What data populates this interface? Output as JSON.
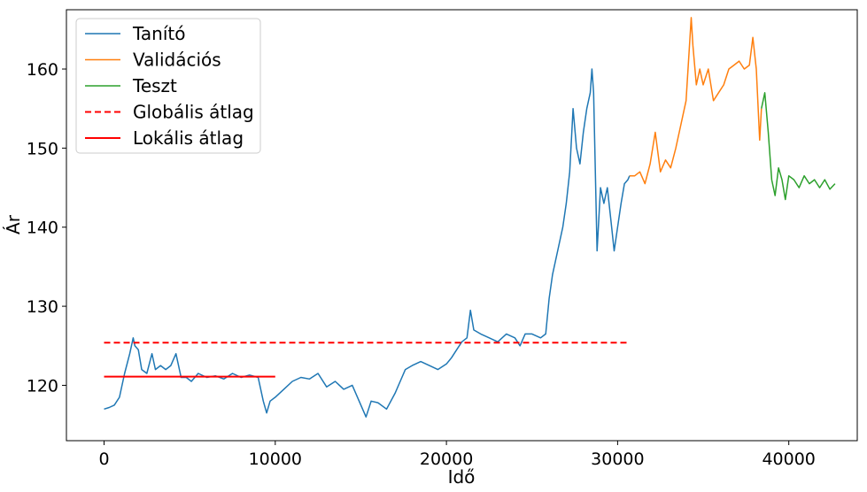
{
  "chart_data": {
    "type": "line",
    "xlabel": "Idő",
    "ylabel": "Ár",
    "xlim": [
      -2200,
      44000
    ],
    "ylim": [
      113,
      167.5
    ],
    "xticks": [
      0,
      10000,
      20000,
      30000,
      40000
    ],
    "xtick_labels": [
      "0",
      "10000",
      "20000",
      "30000",
      "40000"
    ],
    "yticks": [
      120,
      130,
      140,
      150,
      160
    ],
    "ytick_labels": [
      "120",
      "130",
      "140",
      "150",
      "160"
    ],
    "grid": false,
    "legend_position": "top-left",
    "series": [
      {
        "name": "Tanító",
        "color": "#1f77b4",
        "style": "solid",
        "x": [
          0,
          300,
          600,
          900,
          1200,
          1500,
          1700,
          1800,
          2000,
          2200,
          2500,
          2800,
          3000,
          3300,
          3600,
          3900,
          4200,
          4500,
          4800,
          5100,
          5500,
          6000,
          6500,
          7000,
          7500,
          8000,
          8500,
          9000,
          9300,
          9500,
          9700,
          10000,
          10500,
          11000,
          11500,
          12000,
          12500,
          13000,
          13500,
          14000,
          14500,
          15000,
          15300,
          15600,
          16000,
          16500,
          17000,
          17300,
          17600,
          18000,
          18500,
          19000,
          19500,
          20000,
          20300,
          20600,
          20900,
          21200,
          21400,
          21600,
          22000,
          22500,
          23000,
          23500,
          24000,
          24300,
          24600,
          25000,
          25500,
          25800,
          26000,
          26200,
          26500,
          26800,
          27000,
          27200,
          27400,
          27600,
          27800,
          28000,
          28200,
          28400,
          28500,
          28600,
          28800,
          29000,
          29200,
          29400,
          29600,
          29800,
          30000,
          30200,
          30400,
          30600,
          30700
        ],
        "y": [
          117.0,
          117.2,
          117.5,
          118.5,
          121.5,
          124.0,
          126.0,
          125.0,
          124.5,
          122.0,
          121.5,
          124.0,
          122.0,
          122.5,
          122.0,
          122.5,
          124.0,
          121.0,
          121.0,
          120.5,
          121.5,
          121.0,
          121.2,
          120.8,
          121.5,
          121.0,
          121.3,
          121.0,
          118.0,
          116.5,
          118.0,
          118.5,
          119.5,
          120.5,
          121.0,
          120.8,
          121.5,
          119.8,
          120.5,
          119.5,
          120.0,
          117.5,
          116.0,
          118.0,
          117.8,
          117.0,
          119.0,
          120.5,
          122.0,
          122.5,
          123.0,
          122.5,
          122.0,
          122.7,
          123.5,
          124.5,
          125.5,
          126.0,
          129.5,
          127.0,
          126.5,
          126.0,
          125.5,
          126.5,
          126.0,
          125.0,
          126.5,
          126.5,
          126.0,
          126.5,
          131.0,
          134.0,
          137.0,
          140.0,
          143.0,
          147.0,
          155.0,
          150.0,
          148.0,
          152.0,
          155.0,
          157.0,
          160.0,
          157.0,
          137.0,
          145.0,
          143.0,
          145.0,
          141.0,
          137.0,
          140.0,
          143.0,
          145.5,
          146.0,
          146.5
        ]
      },
      {
        "name": "Validációs",
        "color": "#ff7f0e",
        "style": "solid",
        "x": [
          30700,
          31000,
          31300,
          31600,
          31900,
          32200,
          32500,
          32800,
          33100,
          33400,
          33700,
          34000,
          34300,
          34400,
          34600,
          34800,
          35000,
          35300,
          35600,
          35900,
          36200,
          36500,
          36800,
          37100,
          37400,
          37700,
          37900,
          38100,
          38300,
          38400
        ],
        "y": [
          146.5,
          146.5,
          147.0,
          145.5,
          148.0,
          152.0,
          147.0,
          148.5,
          147.5,
          150.0,
          153.0,
          156.0,
          166.5,
          163.0,
          158.0,
          160.0,
          158.0,
          160.0,
          156.0,
          157.0,
          158.0,
          160.0,
          160.5,
          161.0,
          160.0,
          160.5,
          164.0,
          160.0,
          151.0,
          155.0
        ]
      },
      {
        "name": "Teszt",
        "color": "#2ca02c",
        "style": "solid",
        "x": [
          38400,
          38600,
          38800,
          39000,
          39200,
          39400,
          39600,
          39800,
          40000,
          40300,
          40600,
          40900,
          41200,
          41500,
          41800,
          42100,
          42400,
          42700
        ],
        "y": [
          155.0,
          157.0,
          152.0,
          146.0,
          144.0,
          147.5,
          146.0,
          143.5,
          146.5,
          146.0,
          145.0,
          146.5,
          145.5,
          146.0,
          145.0,
          146.0,
          144.8,
          145.5
        ]
      },
      {
        "name": "Globális átlag",
        "color": "#ff0000",
        "style": "dashed",
        "x": [
          0,
          30700
        ],
        "y": [
          125.4,
          125.4
        ]
      },
      {
        "name": "Lokális átlag",
        "color": "#ff0000",
        "style": "solid",
        "x": [
          0,
          10000
        ],
        "y": [
          121.1,
          121.1
        ]
      }
    ]
  }
}
